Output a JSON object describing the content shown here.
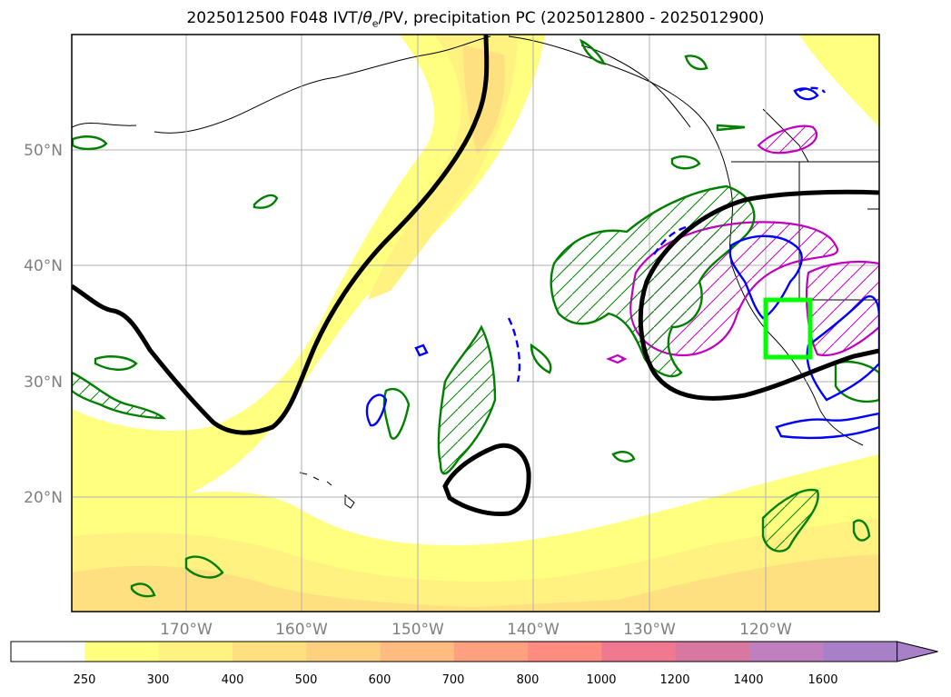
{
  "title_main": "2025012500 F048 IVT/",
  "title_theta": "θ",
  "title_sub": "e",
  "title_rest": "/PV, precipitation PC (2025012800 - 2025012900)",
  "map": {
    "lat_labels": [
      "50°N",
      "40°N",
      "30°N",
      "20°N"
    ],
    "lon_labels": [
      "170°W",
      "160°W",
      "150°W",
      "140°W",
      "130°W",
      "120°W"
    ],
    "colors": {
      "coast": "#000000",
      "pv_contour": "#000000",
      "theta_e_positive": "#0000ff",
      "precip_pc": "#008000",
      "highlight_box": "#00ff00",
      "ivt_anomaly": "#bf00bf"
    }
  },
  "colorbar": {
    "levels": [
      "250",
      "300",
      "400",
      "500",
      "600",
      "700",
      "800",
      "1000",
      "1200",
      "1400",
      "1600"
    ],
    "colors": [
      "#ffffff",
      "#ffff80",
      "#fff280",
      "#ffe080",
      "#ffd080",
      "#ffbb80",
      "#ffa080",
      "#ff8c80",
      "#f07890",
      "#d878a0",
      "#c080c0",
      "#a880c8"
    ]
  }
}
